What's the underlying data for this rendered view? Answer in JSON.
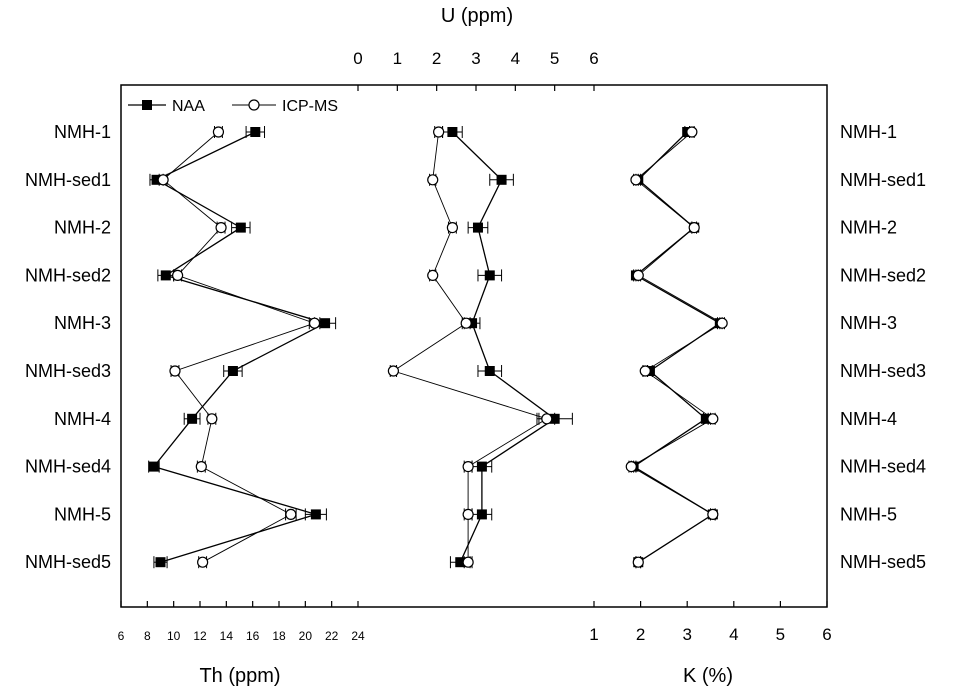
{
  "chart_data": {
    "type": "scatter",
    "categories": [
      "NMH-1",
      "NMH-sed1",
      "NMH-2",
      "NMH-sed2",
      "NMH-3",
      "NMH-sed3",
      "NMH-4",
      "NMH-sed4",
      "NMH-5",
      "NMH-sed5"
    ],
    "legend": {
      "position": "top-left",
      "entries": [
        "NAA",
        "ICP-MS"
      ]
    },
    "panels": [
      {
        "key": "th",
        "xlabel": "Th (ppm)",
        "xlim": [
          6,
          24
        ],
        "ticks": [
          6,
          8,
          10,
          12,
          14,
          16,
          18,
          20,
          22,
          24
        ],
        "tick_labels": [
          "6",
          "8",
          "10",
          "12",
          "14",
          "16",
          "18",
          "20",
          "22",
          "24"
        ],
        "series": [
          {
            "name": "NAA",
            "values": [
              16.2,
              8.7,
              15.1,
              9.4,
              21.5,
              14.5,
              11.4,
              8.5,
              20.8,
              9.0
            ],
            "errors": [
              0.7,
              0.5,
              0.7,
              0.6,
              0.8,
              0.7,
              0.6,
              0.4,
              0.8,
              0.5
            ]
          },
          {
            "name": "ICP-MS",
            "values": [
              13.4,
              9.2,
              13.6,
              10.3,
              20.7,
              10.1,
              12.9,
              12.1,
              18.9,
              12.2
            ],
            "errors": [
              0.3,
              0.3,
              0.3,
              0.3,
              0.4,
              0.3,
              0.3,
              0.3,
              0.4,
              0.3
            ]
          }
        ]
      },
      {
        "key": "u",
        "xlabel": "U (ppm)",
        "xlim": [
          0,
          6
        ],
        "ticks": [
          0,
          1,
          2,
          3,
          4,
          5,
          6
        ],
        "tick_labels": [
          "0",
          "1",
          "2",
          "3",
          "4",
          "5",
          "6"
        ],
        "series": [
          {
            "name": "NAA",
            "values": [
              2.4,
              3.65,
              3.05,
              3.35,
              2.9,
              3.35,
              5.0,
              3.15,
              3.15,
              2.6
            ],
            "errors": [
              0.25,
              0.3,
              0.25,
              0.3,
              0.2,
              0.3,
              0.45,
              0.25,
              0.25,
              0.25
            ]
          },
          {
            "name": "ICP-MS",
            "values": [
              2.05,
              1.9,
              2.4,
              1.9,
              2.75,
              0.9,
              4.8,
              2.8,
              2.8,
              2.8
            ],
            "errors": [
              0.1,
              0.08,
              0.1,
              0.08,
              0.1,
              0.08,
              0.2,
              0.1,
              0.1,
              0.1
            ]
          }
        ]
      },
      {
        "key": "k",
        "xlabel": "K (%)",
        "xlim": [
          1,
          6
        ],
        "ticks": [
          1,
          2,
          3,
          4,
          5,
          6
        ],
        "tick_labels": [
          "1",
          "2",
          "3",
          "4",
          "5",
          "6"
        ],
        "series": [
          {
            "name": "NAA",
            "values": [
              3.0,
              1.95,
              3.15,
              1.9,
              3.7,
              2.2,
              3.4,
              1.85,
              3.55,
              1.95
            ],
            "errors": [
              0.05,
              0.05,
              0.05,
              0.05,
              0.05,
              0.05,
              0.05,
              0.05,
              0.05,
              0.05
            ]
          },
          {
            "name": "ICP-MS",
            "values": [
              3.1,
              1.9,
              3.15,
              1.95,
              3.75,
              2.1,
              3.55,
              1.8,
              3.55,
              1.95
            ],
            "errors": [
              0.05,
              0.05,
              0.05,
              0.05,
              0.05,
              0.05,
              0.05,
              0.05,
              0.05,
              0.05
            ]
          }
        ]
      }
    ]
  }
}
